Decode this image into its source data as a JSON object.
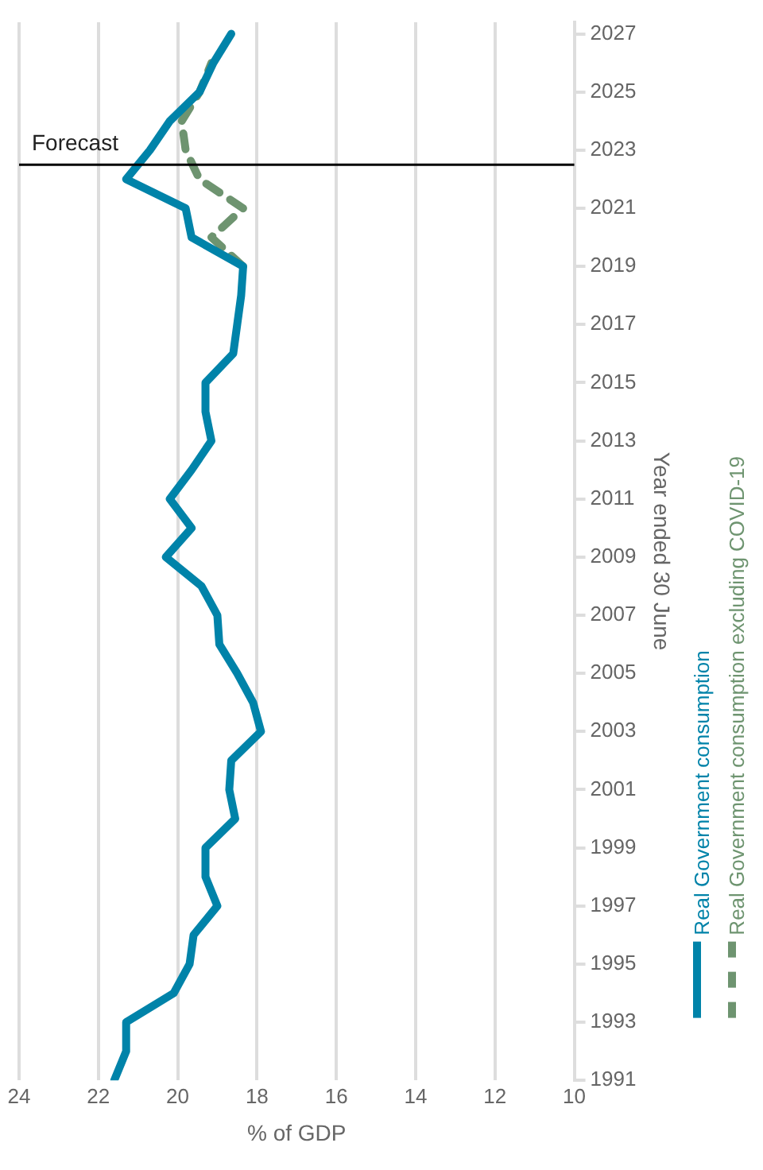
{
  "chart_data": {
    "type": "line",
    "orientation": "horizontal",
    "xlabel": "% of GDP",
    "ylabel": "Year ended 30 June",
    "x": [
      1991,
      1992,
      1993,
      1994,
      1995,
      1996,
      1997,
      1998,
      1999,
      2000,
      2001,
      2002,
      2003,
      2004,
      2005,
      2006,
      2007,
      2008,
      2009,
      2010,
      2011,
      2012,
      2013,
      2014,
      2015,
      2016,
      2017,
      2018,
      2019,
      2020,
      2021,
      2022,
      2023,
      2024,
      2025,
      2026,
      2027
    ],
    "series": [
      {
        "name": "Real Government consumption",
        "color": "#0083a9",
        "line_style": "solid",
        "values": [
          21.6,
          21.3,
          21.3,
          20.1,
          19.7,
          19.6,
          19.0,
          19.3,
          19.3,
          18.55,
          18.7,
          18.65,
          17.9,
          18.1,
          18.5,
          18.95,
          19.0,
          19.4,
          20.3,
          19.65,
          20.2,
          19.65,
          19.15,
          19.3,
          19.3,
          18.6,
          18.5,
          18.4,
          18.35,
          19.65,
          19.8,
          21.3,
          20.7,
          20.2,
          19.45,
          19.1,
          18.65
        ]
      },
      {
        "name": "Real Government consumption excluding COVID-19",
        "color": "#6e9470",
        "line_style": "dashed",
        "x": [
          2019,
          2020,
          2021,
          2022,
          2023,
          2024,
          2025,
          2026
        ],
        "values": [
          18.35,
          19.15,
          18.35,
          19.45,
          19.8,
          19.9,
          19.45,
          19.15
        ]
      }
    ],
    "xlim": [
      24,
      10
    ],
    "xticks": [
      24,
      22,
      20,
      18,
      16,
      14,
      12,
      10
    ],
    "ylim": [
      1991,
      2027.4
    ],
    "yticks": [
      1991,
      1993,
      1995,
      1997,
      1999,
      2001,
      2003,
      2005,
      2007,
      2009,
      2011,
      2013,
      2015,
      2017,
      2019,
      2021,
      2023,
      2025,
      2027
    ],
    "grid": "x",
    "legend": "right",
    "marker": "none",
    "ref_lines": [
      {
        "axis": "y",
        "value": 2022.5,
        "label": "Forecast",
        "color": "#000000"
      }
    ]
  }
}
